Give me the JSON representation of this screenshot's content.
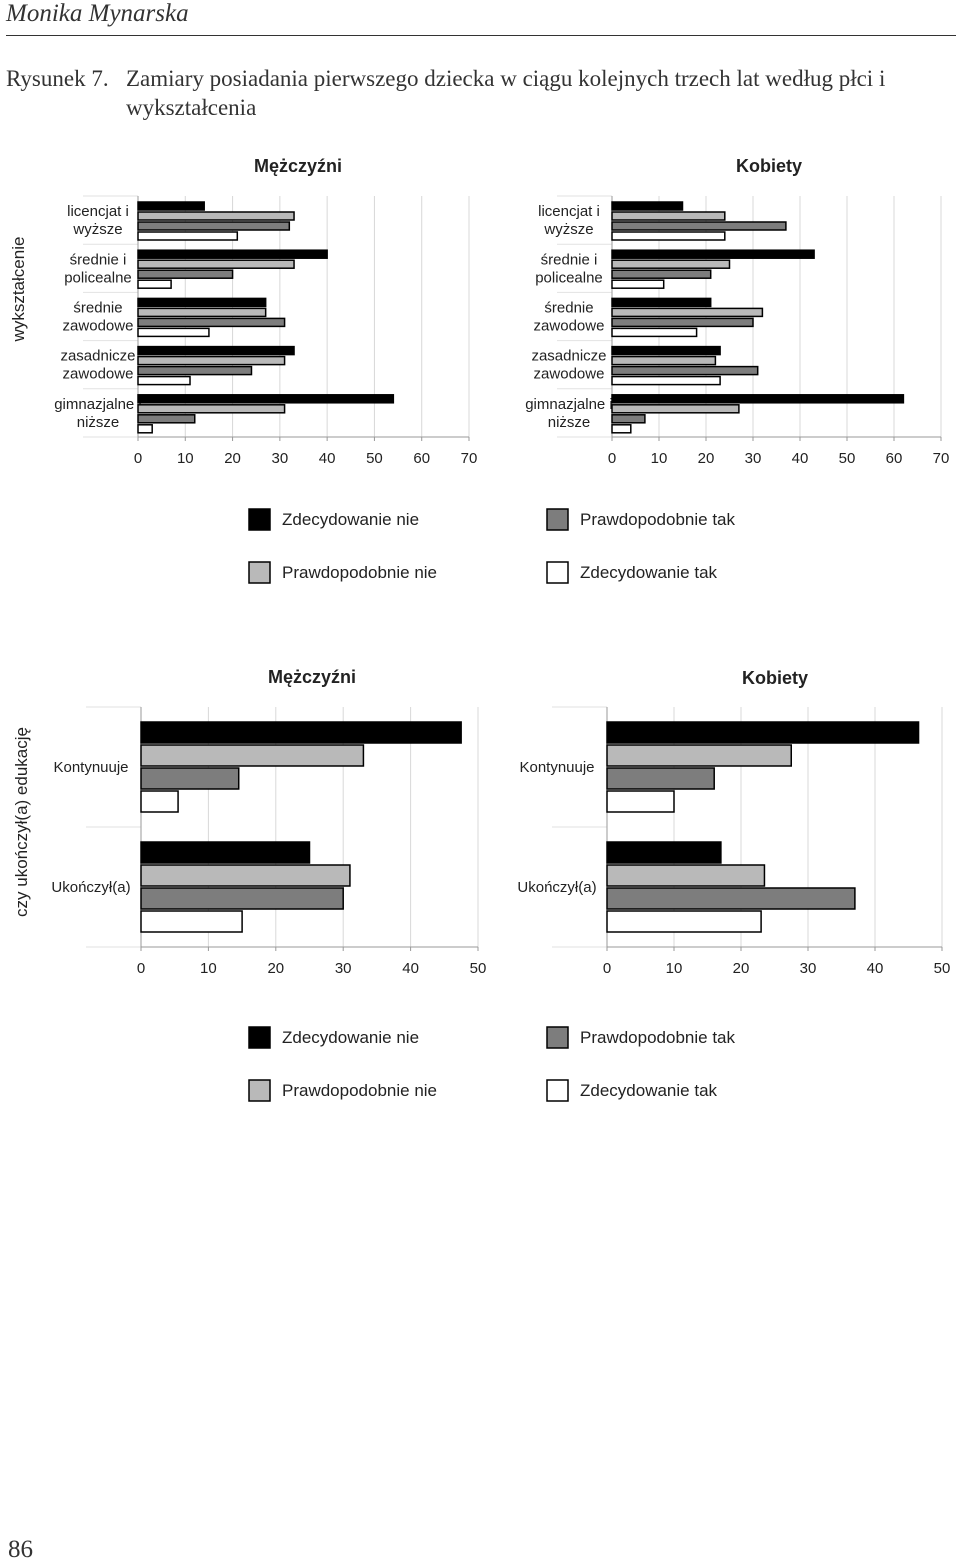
{
  "running_header": "Monika Mynarska",
  "caption": {
    "number": "Rysunek 7.",
    "text": "Zamiary posiadania pierwszego dziecka w ciągu kolejnych trzech lat według płci i wykształcenia"
  },
  "page_number": "86",
  "colors": {
    "Zdecydowanie nie": "#000000",
    "Prawdopodobnie nie": "#b9b9b9",
    "Prawdopodobnie tak": "#7d7d7d",
    "Zdecydowanie tak": "#ffffff"
  },
  "legend": {
    "items": [
      "Zdecydowanie nie",
      "Prawdopodobnie tak",
      "Prawdopodobnie nie",
      "Zdecydowanie tak"
    ]
  },
  "chart_data": [
    {
      "type": "bar",
      "orientation": "horizontal",
      "title": "Mężczyźni",
      "ylabel": "wykształcenie",
      "categories": [
        "licencjat i wyższe",
        "średnie i policealne",
        "średnie zawodowe",
        "zasadnicze zawodowe",
        "gimnazjalne i niższe"
      ],
      "series": [
        {
          "name": "Zdecydowanie nie",
          "values": [
            14,
            40,
            27,
            33,
            54
          ]
        },
        {
          "name": "Prawdopodobnie nie",
          "values": [
            33,
            33,
            27,
            31,
            31
          ]
        },
        {
          "name": "Prawdopodobnie tak",
          "values": [
            32,
            20,
            31,
            24,
            12
          ]
        },
        {
          "name": "Zdecydowanie tak",
          "values": [
            21,
            7,
            15,
            11,
            3
          ]
        }
      ],
      "xlim": [
        0,
        70
      ],
      "xticks": [
        "0",
        "10",
        "20",
        "30",
        "40",
        "50",
        "60",
        "70"
      ],
      "grid": true,
      "legend": "bottom"
    },
    {
      "type": "bar",
      "orientation": "horizontal",
      "title": "Kobiety",
      "categories": [
        "licencjat i wyższe",
        "średnie i policealne",
        "średnie zawodowe",
        "zasadnicze zawodowe",
        "gimnazjalne i niższe"
      ],
      "series": [
        {
          "name": "Zdecydowanie nie",
          "values": [
            15,
            43,
            21,
            23,
            62
          ]
        },
        {
          "name": "Prawdopodobnie nie",
          "values": [
            24,
            25,
            32,
            22,
            27
          ]
        },
        {
          "name": "Prawdopodobnie tak",
          "values": [
            37,
            21,
            30,
            31,
            7
          ]
        },
        {
          "name": "Zdecydowanie tak",
          "values": [
            24,
            11,
            18,
            23,
            4
          ]
        }
      ],
      "xlim": [
        0,
        70
      ],
      "xticks": [
        "0",
        "10",
        "20",
        "30",
        "40",
        "50",
        "60",
        "70"
      ],
      "grid": true,
      "legend": "bottom"
    },
    {
      "type": "bar",
      "orientation": "horizontal",
      "title": "Mężczyźni",
      "ylabel": "czy ukończył(a) edukację",
      "categories": [
        "Kontynuuje",
        "Ukończył(a)"
      ],
      "series": [
        {
          "name": "Zdecydowanie nie",
          "values": [
            47.5,
            25
          ]
        },
        {
          "name": "Prawdopodobnie nie",
          "values": [
            33,
            31
          ]
        },
        {
          "name": "Prawdopodobnie tak",
          "values": [
            14.5,
            30
          ]
        },
        {
          "name": "Zdecydowanie tak",
          "values": [
            5.5,
            15
          ]
        }
      ],
      "xlim": [
        0,
        50
      ],
      "xticks": [
        "0",
        "10",
        "20",
        "30",
        "40",
        "50"
      ],
      "grid": true,
      "legend": "bottom"
    },
    {
      "type": "bar",
      "orientation": "horizontal",
      "title": "Kobiety",
      "categories": [
        "Kontynuuje",
        "Ukończył(a)"
      ],
      "series": [
        {
          "name": "Zdecydowanie nie",
          "values": [
            46.5,
            17
          ]
        },
        {
          "name": "Prawdopodobnie nie",
          "values": [
            27.5,
            23.5
          ]
        },
        {
          "name": "Prawdopodobnie tak",
          "values": [
            16,
            37
          ]
        },
        {
          "name": "Zdecydowanie tak",
          "values": [
            10,
            23
          ]
        }
      ],
      "xlim": [
        0,
        50
      ],
      "xticks": [
        "0",
        "10",
        "20",
        "30",
        "40",
        "50"
      ],
      "grid": true,
      "legend": "bottom"
    }
  ]
}
